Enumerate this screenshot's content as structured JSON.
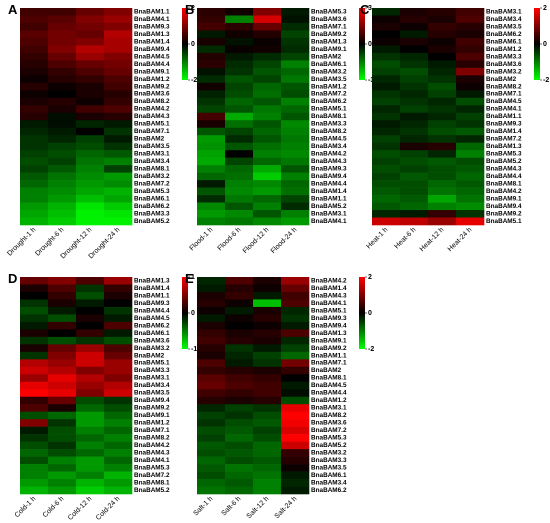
{
  "chart_data": [
    {
      "type": "heatmap",
      "panel": "A",
      "columns": [
        "Drought-1 h",
        "Drought-6 h",
        "Drought-12 h",
        "Drought-24 h"
      ],
      "rows": [
        "BnaBAM1.1",
        "BnaBAM4.1",
        "BnaBAM9.3",
        "BnaBAM1.3",
        "BnaBAM1.4",
        "BnaBAM9.4",
        "BnaBAM4.5",
        "BnaBAM4.4",
        "BnaBAM9.1",
        "BnaBAM1.2",
        "BnaBAM9.2",
        "BnaBAM3.6",
        "BnaBAM8.2",
        "BnaBAM4.2",
        "BnaBAM4.3",
        "BnaBAM5.1",
        "BnaBAM7.1",
        "BnaBAM2",
        "BnaBAM3.5",
        "BnaBAM3.1",
        "BnaBAM3.4",
        "BnaBAM8.1",
        "BnaBAM3.2",
        "BnaBAM7.2",
        "BnaBAM5.3",
        "BnaBAM6.1",
        "BnaBAM6.2",
        "BnaBAM3.3",
        "BnaBAM5.2"
      ],
      "values": [
        [
          0.5,
          0.5,
          0.8,
          1.0
        ],
        [
          0.6,
          0.7,
          1.0,
          1.2
        ],
        [
          0.5,
          0.8,
          0.9,
          1.0
        ],
        [
          0.7,
          0.9,
          0.8,
          1.4
        ],
        [
          0.6,
          0.9,
          1.0,
          1.3
        ],
        [
          0.5,
          1.0,
          1.4,
          1.3
        ],
        [
          0.4,
          0.8,
          1.2,
          1.0
        ],
        [
          0.3,
          0.6,
          0.8,
          0.9
        ],
        [
          0.2,
          0.4,
          0.6,
          0.8
        ],
        [
          0.1,
          0.3,
          0.4,
          0.6
        ],
        [
          0.3,
          0.1,
          0.2,
          0.5
        ],
        [
          0.1,
          0.0,
          0.2,
          0.3
        ],
        [
          0.2,
          0.3,
          0.1,
          0.4
        ],
        [
          0.4,
          0.2,
          0.5,
          0.6
        ],
        [
          0.3,
          -0.1,
          0.2,
          0.3
        ],
        [
          -0.2,
          -0.1,
          -0.3,
          -0.2
        ],
        [
          -0.3,
          -0.2,
          0.0,
          -0.4
        ],
        [
          -0.4,
          -0.3,
          -0.5,
          -0.2
        ],
        [
          -0.4,
          -0.5,
          -0.6,
          -0.4
        ],
        [
          -0.5,
          -0.6,
          -0.8,
          -0.7
        ],
        [
          -0.6,
          -0.5,
          -0.9,
          -1.0
        ],
        [
          -0.5,
          -0.7,
          -1.0,
          -0.5
        ],
        [
          -0.7,
          -0.9,
          -1.1,
          -1.2
        ],
        [
          -0.8,
          -1.0,
          -1.2,
          -1.1
        ],
        [
          -1.0,
          -1.1,
          -1.3,
          -1.4
        ],
        [
          -1.0,
          -1.2,
          -1.5,
          -1.3
        ],
        [
          -1.2,
          -1.4,
          -1.8,
          -1.6
        ],
        [
          -1.3,
          -1.5,
          -1.9,
          -1.8
        ],
        [
          -1.4,
          -1.6,
          -1.9,
          -1.9
        ]
      ],
      "vlim": [
        -2,
        2
      ],
      "colorbar_ticks": [
        2,
        0,
        -2
      ],
      "colors": {
        "low": "#00ff00",
        "mid": "#000000",
        "high": "#ff0000"
      }
    },
    {
      "type": "heatmap",
      "panel": "B",
      "columns": [
        "Flood-1 h",
        "Flood-6 h",
        "Flood-12 h",
        "Flood-24 h"
      ],
      "rows": [
        "BnaBAM5.3",
        "BnaBAM3.6",
        "BnaBAM7.1",
        "BnaBAM9.2",
        "BnaBAM1.3",
        "BnaBAM9.1",
        "BnaBAM2",
        "BnaBAM6.1",
        "BnaBAM3.2",
        "BnaBAM3.5",
        "BnaBAM1.2",
        "BnaBAM7.2",
        "BnaBAM6.2",
        "BnaBAM5.1",
        "BnaBAM8.1",
        "BnaBAM3.3",
        "BnaBAM8.2",
        "BnaBAM4.5",
        "BnaBAM3.4",
        "BnaBAM4.2",
        "BnaBAM4.3",
        "BnaBAM9.3",
        "BnaBAM9.4",
        "BnaBAM4.4",
        "BnaBAM1.4",
        "BnaBAM1.1",
        "BnaBAM5.2",
        "BnaBAM3.1",
        "BnaBAM4.1"
      ],
      "values": [
        [
          0.5,
          0.2,
          1.5,
          -0.3
        ],
        [
          0.6,
          -1.5,
          2.5,
          -0.2
        ],
        [
          0.8,
          0.5,
          1.2,
          -0.5
        ],
        [
          -0.3,
          0.2,
          0.4,
          -0.8
        ],
        [
          0.3,
          -0.2,
          0.1,
          -0.6
        ],
        [
          -0.5,
          0.1,
          0.2,
          -0.5
        ],
        [
          0.4,
          -0.3,
          -0.5,
          -0.8
        ],
        [
          0.5,
          -0.5,
          -0.8,
          -1.5
        ],
        [
          -0.2,
          -0.6,
          -1.0,
          -1.2
        ],
        [
          -0.5,
          -1.0,
          -0.8,
          -1.4
        ],
        [
          0.2,
          -0.8,
          -1.2,
          -1.0
        ],
        [
          -0.4,
          -0.9,
          -1.3,
          -0.9
        ],
        [
          -0.6,
          -1.2,
          -1.0,
          -1.5
        ],
        [
          -0.8,
          -1.0,
          -1.4,
          -1.2
        ],
        [
          0.8,
          -2.0,
          -1.5,
          -1.0
        ],
        [
          0.3,
          -1.3,
          -1.0,
          -1.6
        ],
        [
          -1.0,
          -0.8,
          -1.2,
          -1.5
        ],
        [
          -1.8,
          -0.5,
          -1.0,
          -1.4
        ],
        [
          -1.7,
          -1.0,
          -1.3,
          -1.5
        ],
        [
          -1.9,
          0.0,
          -1.5,
          -1.6
        ],
        [
          -2.0,
          -0.8,
          -1.2,
          -1.4
        ],
        [
          -1.5,
          -1.2,
          -2.0,
          -1.0
        ],
        [
          -1.2,
          -1.3,
          -2.4,
          -1.5
        ],
        [
          -0.3,
          -1.5,
          -1.6,
          -1.2
        ],
        [
          -1.0,
          -1.6,
          -1.8,
          -1.3
        ],
        [
          -0.5,
          -1.4,
          -1.2,
          -0.8
        ],
        [
          -1.6,
          -1.0,
          -1.5,
          -0.5
        ],
        [
          -1.8,
          -1.6,
          -1.0,
          -1.5
        ],
        [
          -1.5,
          -1.4,
          -1.6,
          -1.8
        ]
      ],
      "vlim": [
        -3,
        3
      ],
      "colorbar_ticks": [
        3,
        0,
        -3
      ],
      "colors": {
        "low": "#00ff00",
        "mid": "#000000",
        "high": "#ff0000"
      }
    },
    {
      "type": "heatmap",
      "panel": "C",
      "columns": [
        "Heat-1 h",
        "Heat-6 h",
        "Heat-12 h",
        "Heat-24 h"
      ],
      "rows": [
        "BnaBAM3.1",
        "BnaBAM3.4",
        "BnaBAM3.5",
        "BnaBAM6.2",
        "BnaBAM6.1",
        "BnaBAM1.2",
        "BnaBAM3.3",
        "BnaBAM3.6",
        "BnaBAM3.2",
        "BnaBAM2",
        "BnaBAM8.2",
        "BnaBAM7.1",
        "BnaBAM4.5",
        "BnaBAM4.1",
        "BnaBAM1.1",
        "BnaBAM9.3",
        "BnaBAM1.4",
        "BnaBAM7.2",
        "BnaBAM1.3",
        "BnaBAM5.3",
        "BnaBAM5.2",
        "BnaBAM4.3",
        "BnaBAM4.4",
        "BnaBAM8.1",
        "BnaBAM4.2",
        "BnaBAM9.1",
        "BnaBAM9.4",
        "BnaBAM9.2",
        "BnaBAM5.1"
      ],
      "values": [
        [
          -0.3,
          0.2,
          0.3,
          0.5
        ],
        [
          0.1,
          0.3,
          0.2,
          0.6
        ],
        [
          0.2,
          0.1,
          0.4,
          0.3
        ],
        [
          0.0,
          -0.2,
          0.3,
          0.2
        ],
        [
          0.1,
          0.2,
          0.1,
          0.5
        ],
        [
          -0.2,
          0.0,
          0.2,
          0.4
        ],
        [
          -0.4,
          -0.3,
          0.0,
          0.6
        ],
        [
          -0.6,
          -0.4,
          -0.2,
          0.3
        ],
        [
          -0.5,
          -0.6,
          -0.3,
          1.0
        ],
        [
          -0.3,
          -0.5,
          -0.4,
          0.2
        ],
        [
          -0.2,
          -0.4,
          -0.6,
          0.1
        ],
        [
          -0.4,
          -0.3,
          -0.5,
          -0.2
        ],
        [
          -0.5,
          -0.4,
          -0.3,
          -0.6
        ],
        [
          -0.3,
          -0.5,
          -0.4,
          -0.3
        ],
        [
          -0.4,
          -0.2,
          -0.3,
          -0.5
        ],
        [
          -0.2,
          -0.3,
          -0.5,
          -0.4
        ],
        [
          -0.3,
          -0.4,
          -0.6,
          -0.7
        ],
        [
          -0.5,
          -0.3,
          -0.4,
          -0.3
        ],
        [
          -0.4,
          0.2,
          0.3,
          -0.8
        ],
        [
          -0.6,
          -0.5,
          -0.3,
          -1.0
        ],
        [
          -0.5,
          -0.6,
          -0.7,
          -0.6
        ],
        [
          -0.6,
          -0.5,
          -0.6,
          -0.7
        ],
        [
          -0.5,
          -0.7,
          -0.6,
          -0.8
        ],
        [
          -0.6,
          -0.6,
          -0.8,
          -0.7
        ],
        [
          -0.7,
          -0.6,
          -0.9,
          -0.8
        ],
        [
          -0.8,
          -0.7,
          -1.3,
          -0.9
        ],
        [
          -0.7,
          -0.8,
          -1.0,
          -1.1
        ],
        [
          -0.3,
          -0.2,
          0.4,
          -0.4
        ],
        [
          1.6,
          1.5,
          1.2,
          1.8
        ]
      ],
      "vlim": [
        -2,
        2
      ],
      "colorbar_ticks": [
        2,
        0,
        -2
      ],
      "colors": {
        "low": "#00ff00",
        "mid": "#000000",
        "high": "#ff0000"
      }
    },
    {
      "type": "heatmap",
      "panel": "D",
      "columns": [
        "Cold-1 h",
        "Cold-6 h",
        "Cold-12 h",
        "Cold-24 h"
      ],
      "rows": [
        "BnaBAM1.3",
        "BnaBAM1.4",
        "BnaBAM1.1",
        "BnaBAM9.3",
        "BnaBAM4.4",
        "BnaBAM4.5",
        "BnaBAM6.2",
        "BnaBAM6.1",
        "BnaBAM3.6",
        "BnaBAM3.2",
        "BnaBAM2",
        "BnaBAM5.1",
        "BnaBAM3.3",
        "BnaBAM3.1",
        "BnaBAM3.4",
        "BnaBAM3.5",
        "BnaBAM9.4",
        "BnaBAM9.2",
        "BnaBAM9.1",
        "BnaBAM1.2",
        "BnaBAM7.1",
        "BnaBAM8.2",
        "BnaBAM4.2",
        "BnaBAM4.3",
        "BnaBAM4.1",
        "BnaBAM5.3",
        "BnaBAM7.2",
        "BnaBAM8.1",
        "BnaBAM5.2"
      ],
      "values": [
        [
          0.4,
          0.5,
          0.3,
          0.6
        ],
        [
          0.1,
          0.3,
          -0.2,
          0.2
        ],
        [
          0.0,
          0.2,
          -0.3,
          0.1
        ],
        [
          -0.2,
          0.1,
          -0.1,
          0.0
        ],
        [
          -0.3,
          -0.1,
          0.0,
          -0.2
        ],
        [
          -0.2,
          -0.3,
          0.1,
          -0.1
        ],
        [
          -0.1,
          0.2,
          0.0,
          0.3
        ],
        [
          0.1,
          0.0,
          0.2,
          -0.1
        ],
        [
          -0.2,
          -0.3,
          -0.2,
          -0.3
        ],
        [
          0.1,
          0.4,
          0.6,
          0.3
        ],
        [
          -0.2,
          0.5,
          0.8,
          0.4
        ],
        [
          0.7,
          0.6,
          0.8,
          0.6
        ],
        [
          0.8,
          0.7,
          0.5,
          0.6
        ],
        [
          0.6,
          0.9,
          0.7,
          0.5
        ],
        [
          0.9,
          0.8,
          0.6,
          0.7
        ],
        [
          1.0,
          0.9,
          0.5,
          0.8
        ],
        [
          0.2,
          0.4,
          -0.3,
          -0.2
        ],
        [
          0.3,
          0.1,
          -0.4,
          -0.3
        ],
        [
          -0.3,
          -0.4,
          -0.6,
          -0.4
        ],
        [
          0.5,
          -0.2,
          -0.6,
          -0.5
        ],
        [
          -0.1,
          -0.3,
          -0.5,
          -0.4
        ],
        [
          -0.2,
          -0.3,
          -0.4,
          -0.5
        ],
        [
          -0.3,
          -0.2,
          -0.5,
          -0.4
        ],
        [
          -0.4,
          -0.3,
          -0.4,
          -0.5
        ],
        [
          -0.3,
          -0.5,
          -0.6,
          -0.4
        ],
        [
          -0.5,
          -0.4,
          -0.6,
          -0.5
        ],
        [
          -0.5,
          -0.6,
          -0.5,
          -0.7
        ],
        [
          -0.6,
          -0.5,
          -0.7,
          -0.6
        ],
        [
          -0.7,
          -0.6,
          -0.8,
          -0.7
        ]
      ],
      "vlim": [
        -1,
        1
      ],
      "colorbar_ticks": [
        1,
        0,
        -1
      ],
      "colors": {
        "low": "#00ff00",
        "mid": "#000000",
        "high": "#ff0000"
      }
    },
    {
      "type": "heatmap",
      "panel": "E",
      "columns": [
        "Salt-1 h",
        "Salt-6 h",
        "Salt-12 h",
        "Salt-24 h"
      ],
      "rows": [
        "BnaBAM4.2",
        "BnaBAM1.4",
        "BnaBAM4.3",
        "BnaBAM4.1",
        "BnaBAM5.1",
        "BnaBAM9.3",
        "BnaBAM9.4",
        "BnaBAM1.3",
        "BnaBAM9.1",
        "BnaBAM9.2",
        "BnaBAM1.1",
        "BnaBAM7.1",
        "BnaBAM2",
        "BnaBAM8.1",
        "BnaBAM4.5",
        "BnaBAM4.4",
        "BnaBAM1.2",
        "BnaBAM3.1",
        "BnaBAM8.2",
        "BnaBAM3.6",
        "BnaBAM7.2",
        "BnaBAM5.3",
        "BnaBAM5.2",
        "BnaBAM3.2",
        "BnaBAM3.3",
        "BnaBAM3.5",
        "BnaBAM6.1",
        "BnaBAM3.4",
        "BnaBAM6.2"
      ],
      "values": [
        [
          -0.3,
          0.6,
          0.2,
          1.2
        ],
        [
          -0.2,
          0.3,
          0.1,
          0.8
        ],
        [
          0.2,
          0.4,
          -0.2,
          0.5
        ],
        [
          0.3,
          0.1,
          -1.5,
          0.6
        ],
        [
          0.1,
          -0.2,
          0.2,
          -0.3
        ],
        [
          -0.2,
          0.1,
          0.3,
          -0.4
        ],
        [
          0.2,
          0.0,
          0.1,
          -0.2
        ],
        [
          0.4,
          0.2,
          0.3,
          0.6
        ],
        [
          0.5,
          0.3,
          0.2,
          -0.3
        ],
        [
          0.3,
          -0.4,
          -0.2,
          -0.5
        ],
        [
          0.2,
          -0.3,
          -0.5,
          -0.8
        ],
        [
          0.6,
          -0.2,
          -0.4,
          0.9
        ],
        [
          0.4,
          0.3,
          0.2,
          0.4
        ],
        [
          0.7,
          0.5,
          0.4,
          0.0
        ],
        [
          0.8,
          0.6,
          0.5,
          -0.2
        ],
        [
          0.5,
          0.4,
          0.5,
          -0.1
        ],
        [
          0.3,
          0.2,
          0.3,
          -0.6
        ],
        [
          -0.3,
          -0.5,
          -0.4,
          1.8
        ],
        [
          -0.5,
          -0.4,
          -0.6,
          2.0
        ],
        [
          -0.4,
          -0.6,
          -0.7,
          1.9
        ],
        [
          -0.6,
          -0.7,
          -0.5,
          1.7
        ],
        [
          -0.5,
          -0.8,
          -0.6,
          2.0
        ],
        [
          -0.7,
          -0.6,
          -0.8,
          1.6
        ],
        [
          -0.6,
          -0.7,
          -0.8,
          0.4
        ],
        [
          -0.8,
          -0.6,
          -0.7,
          0.3
        ],
        [
          -0.7,
          -0.9,
          -0.8,
          0.1
        ],
        [
          -0.6,
          -0.8,
          -0.9,
          -0.2
        ],
        [
          -0.8,
          -0.7,
          -1.0,
          -0.3
        ],
        [
          -0.9,
          -0.8,
          -1.0,
          -0.2
        ]
      ],
      "vlim": [
        -2,
        2
      ],
      "colorbar_ticks": [
        2,
        0,
        -2
      ],
      "colors": {
        "low": "#00ff00",
        "mid": "#000000",
        "high": "#ff0000"
      }
    }
  ]
}
